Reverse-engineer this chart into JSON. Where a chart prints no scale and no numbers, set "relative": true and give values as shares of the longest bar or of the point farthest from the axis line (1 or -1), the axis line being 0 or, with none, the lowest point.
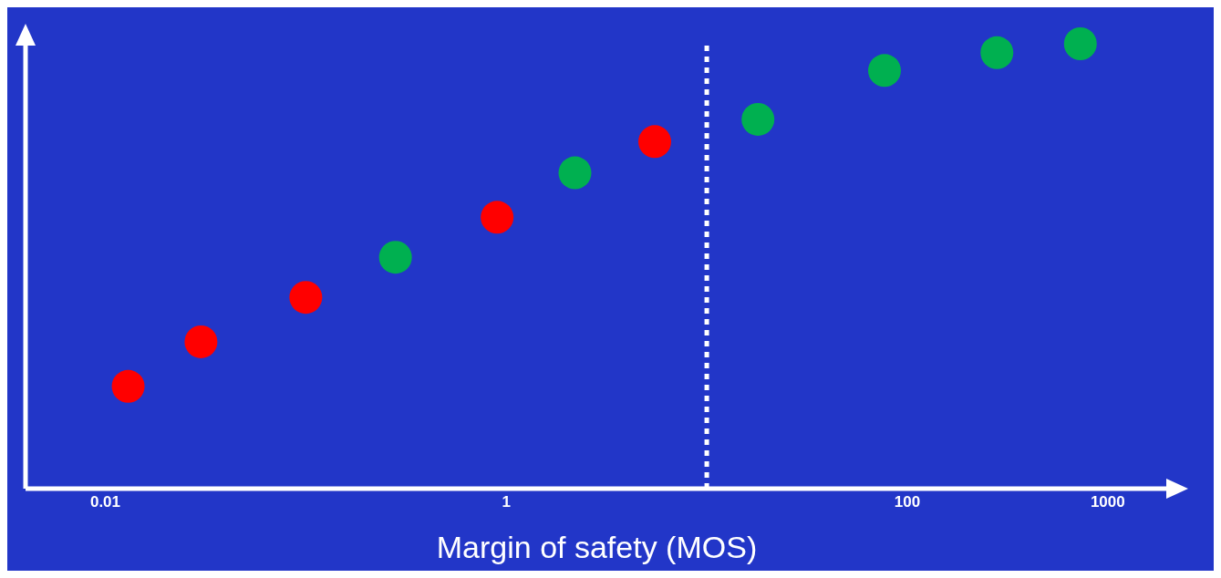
{
  "chart_data": {
    "type": "scatter",
    "xlabel": "Margin of safety (MOS)",
    "relative": true,
    "log": "x",
    "xlim": [
      0.004,
      2000
    ],
    "xticks": [
      0.01,
      1,
      100,
      1000
    ],
    "grid": false,
    "legend": false,
    "marker": "circle",
    "ref_lines": [
      {
        "axis": "x",
        "value": 10,
        "color": "#ffffff",
        "line_style": "dotted"
      }
    ],
    "series": [
      {
        "color": "#ff0000",
        "x": [
          0.013,
          0.03,
          0.1,
          0.9,
          5.5
        ],
        "values": [
          0.23,
          0.33,
          0.43,
          0.61,
          0.78
        ]
      },
      {
        "color": "#00b050",
        "x": [
          0.28,
          2.2,
          18,
          77,
          280,
          730
        ],
        "values": [
          0.52,
          0.71,
          0.83,
          0.94,
          0.98,
          1
        ]
      }
    ]
  }
}
